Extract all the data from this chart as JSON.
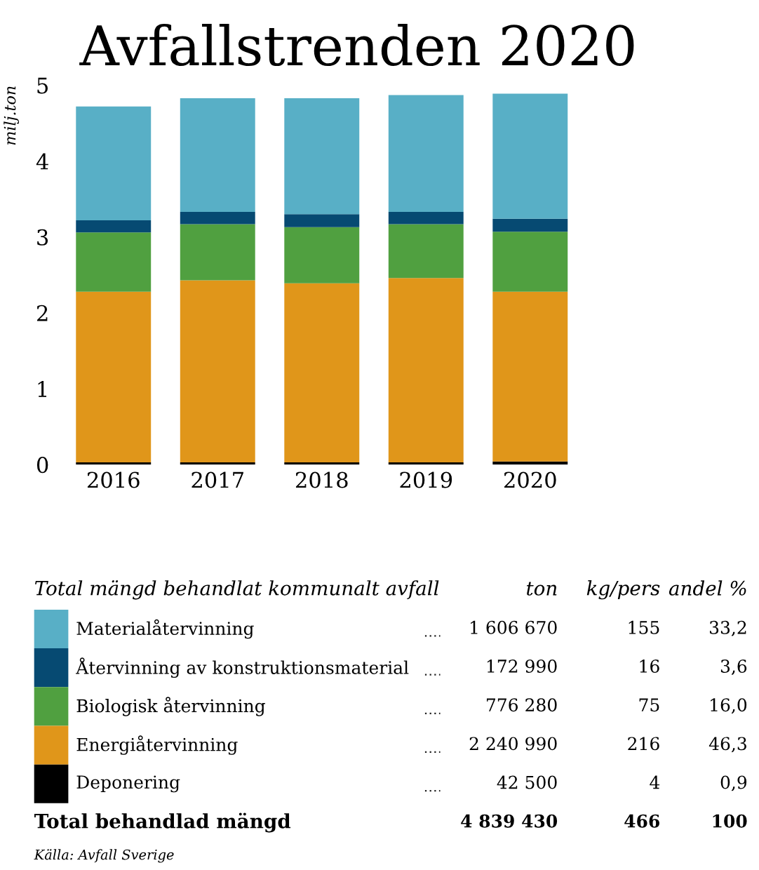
{
  "chart_data": {
    "type": "bar",
    "title": "Avfallstrenden 2020",
    "ylabel": "milj.ton",
    "categories": [
      "2016",
      "2017",
      "2018",
      "2019",
      "2020"
    ],
    "stacked": true,
    "series": [
      {
        "name": "Deponering",
        "color": "#000000",
        "values": [
          0.03,
          0.03,
          0.03,
          0.03,
          0.04
        ]
      },
      {
        "name": "Energiåtervinning",
        "color": "#e0961a",
        "values": [
          2.25,
          2.4,
          2.36,
          2.43,
          2.24
        ]
      },
      {
        "name": "Biologisk återvinning",
        "color": "#50a040",
        "values": [
          0.78,
          0.74,
          0.74,
          0.71,
          0.79
        ]
      },
      {
        "name": "Återvinning av konstruktionsmaterial",
        "color": "#064a72",
        "values": [
          0.16,
          0.16,
          0.17,
          0.16,
          0.17
        ]
      },
      {
        "name": "Materialåtervinning",
        "color": "#58afc6",
        "values": [
          1.5,
          1.5,
          1.53,
          1.54,
          1.65
        ]
      }
    ],
    "ylim": [
      0,
      5
    ],
    "yticks": [
      0,
      1,
      2,
      3,
      4,
      5
    ],
    "grid": false,
    "legend": "bottom",
    "legend_title": "Total mängd behandlat kommunalt avfall",
    "annotations": [
      "ton",
      "kg/pers",
      "andel %",
      "42 500",
      "4",
      "0,9",
      "2 240 990",
      "216",
      "46,3",
      "776 280",
      "75",
      "16,0",
      "172 990",
      "16",
      "3,6",
      "1 606 670",
      "155",
      "33,2",
      "Total behandlad mängd",
      "4 839 430",
      "466",
      "100",
      "Källa: Avfall Sverige"
    ]
  }
}
